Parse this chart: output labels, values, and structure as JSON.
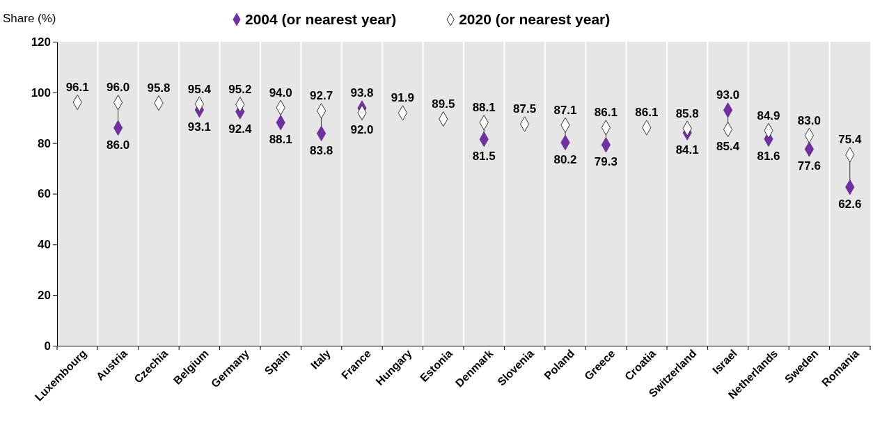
{
  "chart_data": {
    "type": "scatter",
    "ylabel": "Share (%)",
    "categories": [
      "Luxembourg",
      "Austria",
      "Czechia",
      "Belgium",
      "Germany",
      "Spain",
      "Italy",
      "France",
      "Hungary",
      "Estonia",
      "Denmark",
      "Slovenia",
      "Poland",
      "Greece",
      "Croatia",
      "Switzerland",
      "Israel",
      "Netherlands",
      "Sweden",
      "Romania"
    ],
    "series": [
      {
        "name": "2004 (or nearest year)",
        "color": "#7030a0",
        "values": [
          null,
          86.0,
          null,
          93.1,
          92.4,
          88.1,
          83.8,
          93.8,
          null,
          null,
          81.5,
          null,
          80.2,
          79.3,
          null,
          84.1,
          93.0,
          81.6,
          77.6,
          62.6
        ],
        "value_labels": [
          null,
          "86.0",
          null,
          "93.1",
          "92.4",
          "88.1",
          "83.8",
          "93.8",
          null,
          null,
          "81.5",
          null,
          "80.2",
          "79.3",
          null,
          "84.1",
          "93.0",
          "81.6",
          "77.6",
          "62.6"
        ]
      },
      {
        "name": "2020 (or nearest year)",
        "color": "#ffffff",
        "values": [
          96.1,
          96.0,
          95.8,
          95.4,
          95.2,
          94.0,
          92.7,
          92.0,
          91.9,
          89.5,
          88.1,
          87.5,
          87.1,
          86.1,
          86.1,
          85.8,
          85.4,
          84.9,
          83.0,
          75.4
        ],
        "value_labels": [
          "96.1",
          "96.0",
          "95.8",
          "95.4",
          "95.2",
          "94.0",
          "92.7",
          "92.0",
          "91.9",
          "89.5",
          "88.1",
          "87.5",
          "87.1",
          "86.1",
          "86.1",
          "85.8",
          "85.4",
          "84.9",
          "83.0",
          "75.4"
        ]
      }
    ],
    "ylim": [
      0,
      120
    ],
    "yticks": [
      0,
      20,
      40,
      60,
      80,
      100,
      120
    ],
    "grid": "x",
    "legend": "top",
    "marker": "diamond"
  }
}
